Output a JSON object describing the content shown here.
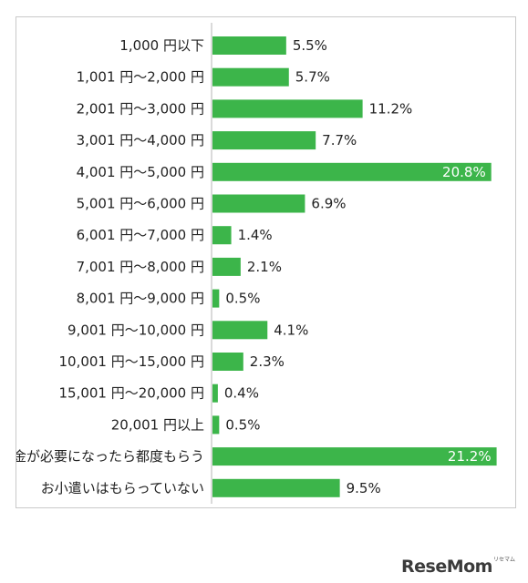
{
  "chart_data": {
    "type": "bar",
    "orientation": "horizontal",
    "categories": [
      "1,000 円以下",
      "1,001 円〜2,000 円",
      "2,001 円〜3,000 円",
      "3,001 円〜4,000 円",
      "4,001 円〜5,000 円",
      "5,001 円〜6,000 円",
      "6,001 円〜7,000 円",
      "7,001 円〜8,000 円",
      "8,001 円〜9,000 円",
      "9,001 円〜10,000 円",
      "10,001 円〜15,000 円",
      "15,001 円〜20,000 円",
      "20,001 円以上",
      "お金が必要になったら都度もらう",
      "お小遣いはもらっていない"
    ],
    "values": [
      5.5,
      5.7,
      11.2,
      7.7,
      20.8,
      6.9,
      1.4,
      2.1,
      0.5,
      4.1,
      2.3,
      0.4,
      0.5,
      21.2,
      9.5
    ],
    "value_labels": [
      "5.5%",
      "5.7%",
      "11.2%",
      "7.7%",
      "20.8%",
      "6.9%",
      "1.4%",
      "2.1%",
      "0.5%",
      "4.1%",
      "2.3%",
      "0.4%",
      "0.5%",
      "21.2%",
      "9.5%"
    ],
    "xlim": [
      0,
      21.5
    ],
    "grid": false,
    "bar_color": "#3cb54a"
  },
  "logo": {
    "text": "ReseMom",
    "subtext": "リセマム"
  }
}
